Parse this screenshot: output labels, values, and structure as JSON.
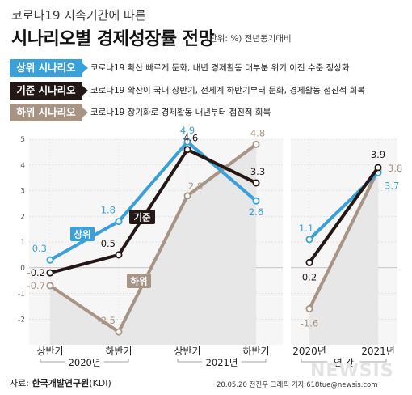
{
  "header": {
    "subtitle": "코로나19 지속기간에 따른",
    "title": "시나리오별 경제성장률 전망",
    "unit": "(단위: %) 전년동기대비"
  },
  "scenarios": [
    {
      "label": "상위 시나리오",
      "desc": "코로나19 확산 빠르게 둔화, 내년 경제활동 대부분 위기 이전 수준 정상화",
      "color": "#3aa0d9"
    },
    {
      "label": "기준 시나리오",
      "desc": "코로나19 확산이 국내 상반기, 전세계 하반기부터 둔화, 경제활동 점진적 회복",
      "color": "#231815"
    },
    {
      "label": "하위 시나리오",
      "desc": "코로나19 장기화로 경제활동 내년부터 점진적 회복",
      "color": "#a89484"
    }
  ],
  "footer": {
    "source_prefix": "자료: ",
    "source_name": "한국개발연구원",
    "source_suffix": "(KDI)",
    "credit": "20.05.20 전진우 그래픽 기자 618tue@newsis.com",
    "watermark": "NEWSIS"
  },
  "chart_data": [
    {
      "type": "line",
      "title": "",
      "x": [
        "상반기",
        "하반기",
        "상반기",
        "하반기"
      ],
      "groups": [
        {
          "label": "2020년",
          "span": [
            0,
            1
          ]
        },
        {
          "label": "2021년",
          "span": [
            2,
            3
          ]
        }
      ],
      "ylim": [
        -3,
        5
      ],
      "yticks": [
        -2,
        -1,
        0,
        1,
        2,
        3,
        4,
        5
      ],
      "grid": true,
      "series": [
        {
          "name": "상위",
          "values": [
            0.3,
            1.8,
            4.9,
            2.6
          ],
          "labels": [
            "0.3",
            "1.8",
            "4.9",
            "2.6"
          ],
          "color": "#3aa0d9"
        },
        {
          "name": "기준",
          "values": [
            -0.2,
            0.5,
            4.6,
            3.3
          ],
          "labels": [
            "-0.2",
            "0.5",
            "4.6",
            "3.3"
          ],
          "color": "#231815"
        },
        {
          "name": "하위",
          "values": [
            -0.7,
            -2.5,
            2.8,
            4.8
          ],
          "labels": [
            "-0.7",
            "-2.5",
            "2.8",
            "4.8"
          ],
          "color": "#a89484"
        }
      ]
    },
    {
      "type": "line",
      "title": "",
      "x": [
        "2020년",
        "2021년"
      ],
      "group_label": "연 간",
      "ylim": [
        -3,
        5
      ],
      "series": [
        {
          "name": "상위",
          "values": [
            1.1,
            3.7
          ],
          "labels": [
            "1.1",
            "3.7"
          ],
          "color": "#3aa0d9"
        },
        {
          "name": "기준",
          "values": [
            0.2,
            3.9
          ],
          "labels": [
            "0.2",
            "3.9"
          ],
          "color": "#231815"
        },
        {
          "name": "하위",
          "values": [
            -1.6,
            3.8
          ],
          "labels": [
            "-1.6",
            "3.8"
          ],
          "color": "#a89484"
        }
      ]
    }
  ]
}
